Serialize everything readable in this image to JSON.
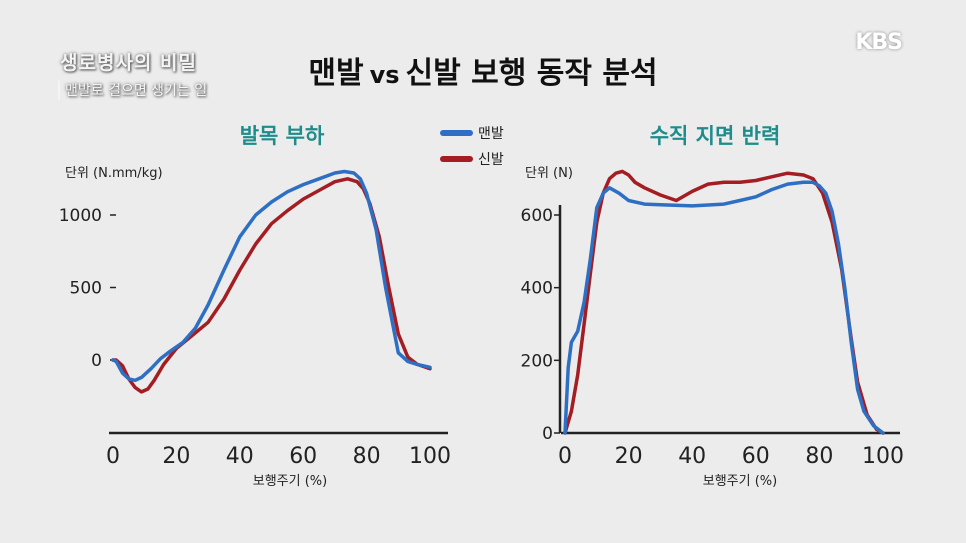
{
  "title": {
    "part1": "맨발",
    "vs": "vs",
    "part2": "신발 보행 동작 분석"
  },
  "overlay": {
    "program_title": "생로병사의 비밀",
    "program_subtitle": "맨발로 걸으면 생기는 일",
    "broadcaster": "KBS"
  },
  "colors": {
    "barefoot": "#2e6fc4",
    "shoes": "#a31d23",
    "subtitle": "#1f8c8c",
    "axis": "#222222"
  },
  "legend": [
    {
      "name": "맨발",
      "color": "#2e6fc4"
    },
    {
      "name": "신발",
      "color": "#a31d23"
    }
  ],
  "chart_data": [
    {
      "type": "line",
      "title": "발목 부하",
      "ylabel": "단위 (N.mm/kg)",
      "xlabel": "보행주기 (%)",
      "xlim": [
        0,
        100
      ],
      "ylim": [
        -500,
        1400
      ],
      "xticks": [
        0,
        20,
        40,
        60,
        80,
        100
      ],
      "yticks": [
        0,
        500,
        1000
      ],
      "ytick_labels": [
        "0",
        "500",
        "1000"
      ],
      "grid": false,
      "legend_placement": "top-right",
      "series": [
        {
          "name": "맨발",
          "x": [
            0,
            1,
            3,
            5,
            7,
            9,
            12,
            15,
            18,
            22,
            26,
            30,
            35,
            40,
            45,
            50,
            55,
            60,
            65,
            70,
            73,
            76,
            78,
            80,
            83,
            86,
            90,
            93,
            96,
            100
          ],
          "y": [
            0,
            -10,
            -90,
            -130,
            -140,
            -120,
            -60,
            10,
            60,
            120,
            220,
            380,
            620,
            850,
            1000,
            1090,
            1160,
            1210,
            1250,
            1290,
            1300,
            1290,
            1250,
            1150,
            900,
            500,
            50,
            -10,
            -30,
            -50
          ]
        },
        {
          "name": "신발",
          "x": [
            0,
            1,
            3,
            5,
            7,
            9,
            11,
            13,
            16,
            20,
            25,
            30,
            35,
            40,
            45,
            50,
            55,
            60,
            65,
            70,
            74,
            77,
            79,
            81,
            84,
            87,
            90,
            93,
            96,
            100
          ],
          "y": [
            0,
            0,
            -40,
            -130,
            -190,
            -220,
            -200,
            -140,
            -30,
            80,
            170,
            260,
            420,
            620,
            800,
            940,
            1030,
            1110,
            1170,
            1230,
            1250,
            1230,
            1180,
            1080,
            850,
            500,
            180,
            20,
            -30,
            -60
          ]
        }
      ]
    },
    {
      "type": "line",
      "title": "수직 지면 반력",
      "ylabel": "단위 (N)",
      "xlabel": "보행주기 (%)",
      "xlim": [
        0,
        100
      ],
      "ylim": [
        0,
        760
      ],
      "xticks": [
        0,
        20,
        40,
        60,
        80,
        100
      ],
      "yticks": [
        0,
        200,
        400,
        600
      ],
      "ytick_labels": [
        "0",
        "200",
        "400",
        "600"
      ],
      "grid": false,
      "series": [
        {
          "name": "맨발",
          "x": [
            0,
            1,
            2,
            4,
            6,
            8,
            10,
            12,
            14,
            17,
            20,
            25,
            30,
            40,
            50,
            55,
            60,
            65,
            70,
            75,
            78,
            80,
            82,
            84,
            86,
            88,
            90,
            92,
            94,
            97,
            100
          ],
          "y": [
            0,
            180,
            250,
            280,
            360,
            480,
            620,
            660,
            675,
            660,
            640,
            630,
            628,
            625,
            630,
            640,
            650,
            670,
            685,
            690,
            690,
            680,
            660,
            610,
            520,
            400,
            250,
            120,
            60,
            20,
            0
          ]
        },
        {
          "name": "신발",
          "x": [
            0,
            2,
            4,
            6,
            8,
            10,
            12,
            14,
            16,
            18,
            20,
            22,
            25,
            30,
            35,
            40,
            45,
            50,
            55,
            60,
            65,
            70,
            75,
            78,
            81,
            84,
            87,
            90,
            92,
            95,
            98,
            100
          ],
          "y": [
            0,
            60,
            160,
            300,
            440,
            580,
            660,
            700,
            715,
            720,
            710,
            690,
            675,
            655,
            640,
            665,
            685,
            690,
            690,
            695,
            705,
            715,
            710,
            700,
            660,
            580,
            450,
            260,
            140,
            50,
            10,
            0
          ]
        }
      ]
    }
  ]
}
